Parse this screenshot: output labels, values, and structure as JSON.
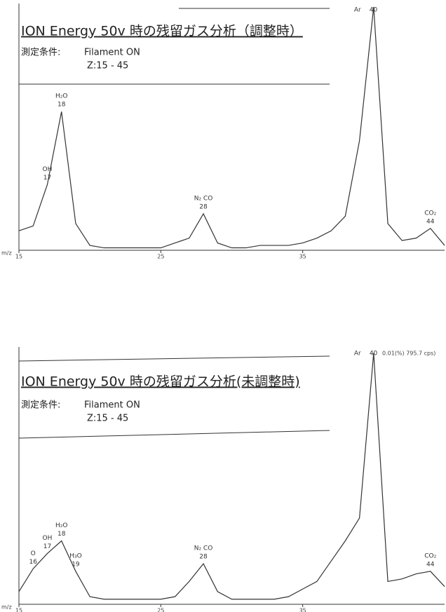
{
  "chart_data": [
    {
      "type": "line",
      "title": "ION Energy 50v 時の残留ガス分析（調整時）",
      "condition_label": "測定条件:",
      "condition_lines": [
        "Filament ON",
        "Z:15 - 45"
      ],
      "xlabel": "m/z",
      "x": [
        15,
        16,
        17,
        18,
        19,
        20,
        21,
        22,
        23,
        24,
        25,
        26,
        27,
        28,
        29,
        30,
        31,
        32,
        33,
        34,
        35,
        36,
        37,
        38,
        39,
        40,
        41,
        42,
        43,
        44,
        45
      ],
      "series": [
        {
          "color": "#333333",
          "values": [
            8,
            10,
            27,
            57,
            11,
            2,
            1,
            1,
            1,
            1,
            1,
            3,
            5,
            15,
            3,
            1,
            1,
            2,
            2,
            2,
            3,
            5,
            8,
            14,
            45,
            100,
            11,
            4,
            5,
            9,
            2
          ]
        }
      ],
      "xlim": [
        15,
        45
      ],
      "xticks": [
        15,
        25,
        35
      ],
      "ylim": [
        0,
        100
      ],
      "annotations": [
        {
          "name": "OH",
          "mass": 17
        },
        {
          "name": "H₂O",
          "mass": 18
        },
        {
          "name": "N₂ CO",
          "mass": 28
        },
        {
          "name": "Ar",
          "mass": 40
        },
        {
          "name": "CO₂",
          "mass": 44
        }
      ]
    },
    {
      "type": "line",
      "title": "ION Energy 50v 時の残留ガス分析(未調整時)",
      "condition_label": "測定条件:",
      "condition_lines": [
        "Filament ON",
        "Z:15 - 45"
      ],
      "xlabel": "m/z",
      "note": "0.01(%) 795.7 cps)",
      "x": [
        15,
        16,
        17,
        18,
        19,
        20,
        21,
        22,
        23,
        24,
        25,
        26,
        27,
        28,
        29,
        30,
        31,
        32,
        33,
        34,
        35,
        36,
        37,
        38,
        39,
        40,
        41,
        42,
        43,
        44,
        45
      ],
      "series": [
        {
          "color": "#333333",
          "values": [
            5,
            14,
            20,
            25,
            13,
            3,
            2,
            2,
            2,
            2,
            2,
            3,
            9,
            16,
            5,
            2,
            2,
            2,
            2,
            3,
            6,
            9,
            17,
            25,
            34,
            99,
            9,
            10,
            12,
            13,
            7
          ]
        }
      ],
      "xlim": [
        15,
        45
      ],
      "xticks": [
        15,
        25,
        35
      ],
      "ylim": [
        0,
        100
      ],
      "annotations": [
        {
          "name": "O",
          "mass": 16
        },
        {
          "name": "OH",
          "mass": 17
        },
        {
          "name": "H₂O",
          "mass": 18
        },
        {
          "name": "H₃O",
          "mass": 19
        },
        {
          "name": "N₂ CO",
          "mass": 28
        },
        {
          "name": "Ar",
          "mass": 40
        },
        {
          "name": "CO₂",
          "mass": 44
        }
      ]
    }
  ]
}
